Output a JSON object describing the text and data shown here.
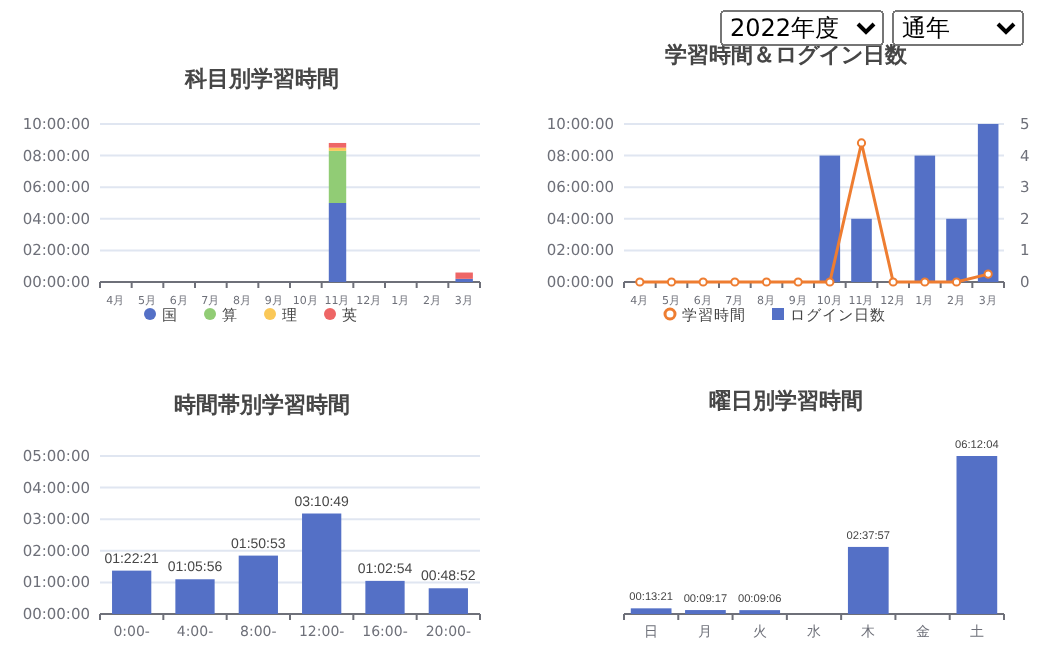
{
  "chart_data": [
    {
      "type": "other",
      "annotations": [
        "2022年度",
        "通年"
      ]
    },
    {
      "type": "bar",
      "title": "科目別学習時間",
      "stacked": true,
      "categories": [
        "4月",
        "5月",
        "6月",
        "7月",
        "8月",
        "9月",
        "10月",
        "11月",
        "12月",
        "1月",
        "2月",
        "3月"
      ],
      "series": [
        {
          "name": "国",
          "color": "#5470c6",
          "values": [
            0,
            0,
            0,
            0,
            0,
            0,
            0,
            5.0,
            0,
            0,
            0,
            0.2
          ]
        },
        {
          "name": "算",
          "color": "#91cc75",
          "values": [
            0,
            0,
            0,
            0,
            0,
            0,
            0,
            3.3,
            0,
            0,
            0,
            0
          ]
        },
        {
          "name": "理",
          "color": "#fac858",
          "values": [
            0,
            0,
            0,
            0,
            0,
            0,
            0,
            0.2,
            0,
            0,
            0,
            0
          ]
        },
        {
          "name": "英",
          "color": "#ee6666",
          "values": [
            0,
            0,
            0,
            0,
            0,
            0,
            0,
            0.3,
            0,
            0,
            0,
            0.4
          ]
        }
      ],
      "ylim": [
        0,
        10
      ],
      "yticks": [
        {
          "value": 0,
          "label": "00:00:00"
        },
        {
          "value": 2,
          "label": "02:00:00"
        },
        {
          "value": 4,
          "label": "04:00:00"
        },
        {
          "value": 6,
          "label": "06:00:00"
        },
        {
          "value": 8,
          "label": "08:00:00"
        },
        {
          "value": 10,
          "label": "10:00:00"
        }
      ],
      "grid": "y",
      "legend": "bottom"
    },
    {
      "type": "bar",
      "title": "学習時間＆ログイン日数",
      "categories": [
        "4月",
        "5月",
        "6月",
        "7月",
        "8月",
        "9月",
        "10月",
        "11月",
        "12月",
        "1月",
        "2月",
        "3月"
      ],
      "series": [
        {
          "name": "学習時間",
          "type": "line",
          "color": "#ee7d31",
          "marker": "circle",
          "values": [
            0,
            0,
            0,
            0,
            0,
            0,
            0,
            8.8,
            0,
            0,
            0,
            0.5
          ]
        },
        {
          "name": "ログイン日数",
          "type": "bar",
          "axis": "y2",
          "color": "#5470c6",
          "values": [
            0,
            0,
            0,
            0,
            0,
            0,
            4,
            2,
            0,
            4,
            2,
            5
          ]
        }
      ],
      "ylim": [
        0,
        10
      ],
      "yticks": [
        {
          "value": 0,
          "label": "00:00:00"
        },
        {
          "value": 2,
          "label": "02:00:00"
        },
        {
          "value": 4,
          "label": "04:00:00"
        },
        {
          "value": 6,
          "label": "06:00:00"
        },
        {
          "value": 8,
          "label": "08:00:00"
        },
        {
          "value": 10,
          "label": "10:00:00"
        }
      ],
      "y2lim": [
        0,
        5
      ],
      "y2ticks": [
        0,
        1,
        2,
        3,
        4,
        5
      ],
      "grid": "y",
      "legend": "bottom"
    },
    {
      "type": "bar",
      "title": "時間帯別学習時間",
      "categories": [
        "0:00-",
        "4:00-",
        "8:00-",
        "12:00-",
        "16:00-",
        "20:00-"
      ],
      "color": "#5470c6",
      "values": [
        1.3725,
        1.0989,
        1.8481,
        3.1803,
        1.0483,
        0.8144
      ],
      "value_labels": [
        "01:22:21",
        "01:05:56",
        "01:50:53",
        "03:10:49",
        "01:02:54",
        "00:48:52"
      ],
      "ylim": [
        0,
        5
      ],
      "yticks": [
        {
          "value": 0,
          "label": "00:00:00"
        },
        {
          "value": 1,
          "label": "01:00:00"
        },
        {
          "value": 2,
          "label": "02:00:00"
        },
        {
          "value": 3,
          "label": "03:00:00"
        },
        {
          "value": 4,
          "label": "04:00:00"
        },
        {
          "value": 5,
          "label": "05:00:00"
        }
      ],
      "grid": "y"
    },
    {
      "type": "bar",
      "title": "曜日別学習時間",
      "categories": [
        "日",
        "月",
        "火",
        "水",
        "木",
        "金",
        "土"
      ],
      "color": "#5470c6",
      "values": [
        0.2225,
        0.1547,
        0.1517,
        0,
        2.6325,
        0,
        6.2011
      ],
      "value_labels": [
        "00:13:21",
        "00:09:17",
        "00:09:06",
        null,
        "02:37:57",
        null,
        "06:12:04"
      ],
      "tick_labels": "x"
    }
  ]
}
